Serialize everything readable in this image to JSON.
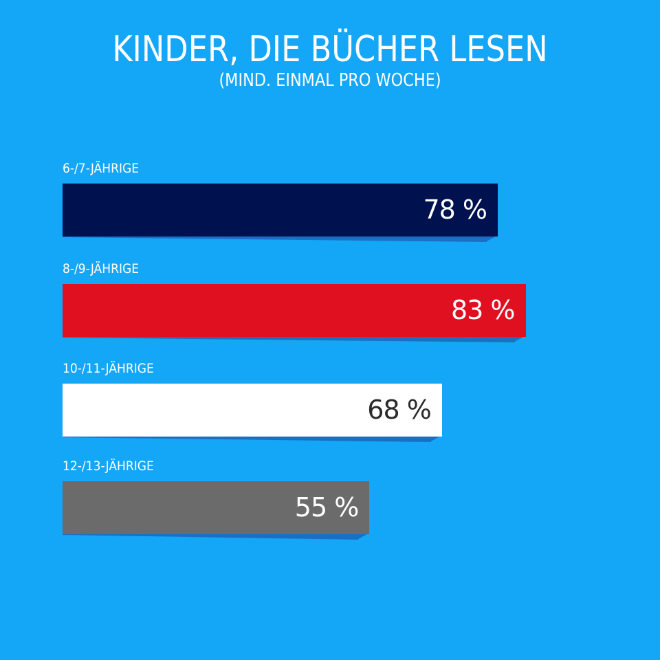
{
  "chart_data": {
    "type": "bar",
    "orientation": "horizontal",
    "title": "KINDER, DIE BÜCHER LESEN",
    "subtitle": "(MIND. EINMAL PRO WOCHE)",
    "xlabel": "",
    "ylabel": "",
    "xlim": [
      0,
      100
    ],
    "grid": false,
    "unit": "%",
    "categories": [
      "6-/7-JÄHRIGE",
      "8-/9-JÄHRIGE",
      "10-/11-JÄHRIGE",
      "12-/13-JÄHRIGE"
    ],
    "values": [
      78,
      83,
      68,
      55
    ],
    "value_labels": [
      "78 %",
      "83 %",
      "68 %",
      "55 %"
    ],
    "bar_colors": [
      "#001150",
      "#e01020",
      "#ffffff",
      "#6b6b6b"
    ],
    "label_colors": [
      "#ffffff",
      "#ffffff",
      "#2a2a2a",
      "#ffffff"
    ]
  },
  "colors": {
    "background": "#14a6f7",
    "shadow": "#1a6fc4",
    "text": "#ffffff"
  }
}
